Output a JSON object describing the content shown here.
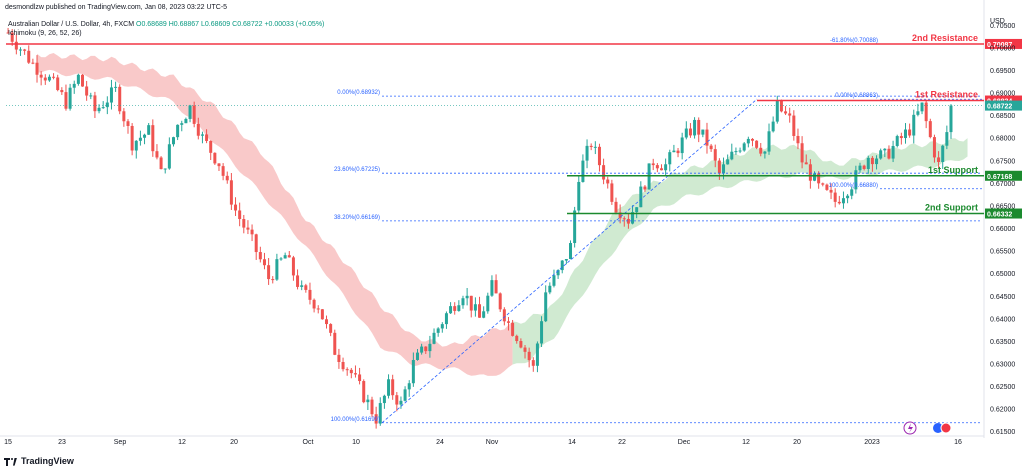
{
  "header": {
    "publisher": "desmondlzw published on TradingView.com, Jan 08, 2023 03:22 UTC-5",
    "symbol": "Australian Dollar / U.S. Dollar, 4h, FXCM",
    "ohlc": "O0.68689  H0.68867  L0.68609  C0.68722  +0.00033 (+0.05%)",
    "indicator": "Ichimoku (9, 26, 52, 26)"
  },
  "footer": {
    "brand": "TradingView"
  },
  "colors": {
    "up": "#26a69a",
    "down": "#ef5350",
    "cloud_bull": "#c8e6c9",
    "cloud_bear": "#f8c0bf",
    "resistance": "#f23645",
    "support": "#1b8a2e",
    "fib": "#2962ff"
  },
  "chart_data": {
    "type": "candlestick",
    "currency": "USD",
    "ylim": [
      0.6145,
      0.7075
    ],
    "y_ticks": [
      "0.70500",
      "0.70000",
      "0.69500",
      "0.69000",
      "0.68500",
      "0.68000",
      "0.67500",
      "0.67000",
      "0.66500",
      "0.66000",
      "0.65500",
      "0.65000",
      "0.64500",
      "0.64000",
      "0.63500",
      "0.63000",
      "0.62500",
      "0.62000",
      "0.61500"
    ],
    "x_ticks": [
      "15",
      "23",
      "Sep",
      "12",
      "20",
      "Oct",
      "10",
      "24",
      "Nov",
      "14",
      "22",
      "Dec",
      "12",
      "20",
      "2023",
      "16"
    ],
    "close_path": [
      [
        0,
        0.7034
      ],
      [
        6,
        0.6965
      ],
      [
        10,
        0.693
      ],
      [
        14,
        0.688
      ],
      [
        17,
        0.6935
      ],
      [
        21,
        0.686
      ],
      [
        26,
        0.6905
      ],
      [
        30,
        0.679
      ],
      [
        34,
        0.6815
      ],
      [
        37,
        0.672
      ],
      [
        41,
        0.683
      ],
      [
        44,
        0.6868
      ],
      [
        47,
        0.68
      ],
      [
        51,
        0.6745
      ],
      [
        55,
        0.664
      ],
      [
        59,
        0.657
      ],
      [
        63,
        0.649
      ],
      [
        67,
        0.654
      ],
      [
        71,
        0.646
      ],
      [
        75,
        0.643
      ],
      [
        79,
        0.633
      ],
      [
        83,
        0.628
      ],
      [
        86,
        0.623
      ],
      [
        89,
        0.618
      ],
      [
        92,
        0.625
      ],
      [
        95,
        0.621
      ],
      [
        98,
        0.63
      ],
      [
        102,
        0.635
      ],
      [
        106,
        0.641
      ],
      [
        110,
        0.646
      ],
      [
        114,
        0.64
      ],
      [
        117,
        0.647
      ],
      [
        121,
        0.639
      ],
      [
        124,
        0.635
      ],
      [
        127,
        0.629
      ],
      [
        130,
        0.646
      ],
      [
        133,
        0.65
      ],
      [
        136,
        0.656
      ],
      [
        138,
        0.672
      ],
      [
        141,
        0.679
      ],
      [
        144,
        0.672
      ],
      [
        147,
        0.665
      ],
      [
        150,
        0.662
      ],
      [
        153,
        0.668
      ],
      [
        156,
        0.675
      ],
      [
        159,
        0.674
      ],
      [
        162,
        0.678
      ],
      [
        166,
        0.683
      ],
      [
        169,
        0.679
      ],
      [
        172,
        0.672
      ],
      [
        175,
        0.676
      ],
      [
        179,
        0.681
      ],
      [
        183,
        0.677
      ],
      [
        186,
        0.687
      ],
      [
        189,
        0.684
      ],
      [
        192,
        0.675
      ],
      [
        196,
        0.669
      ],
      [
        200,
        0.666
      ],
      [
        204,
        0.67
      ],
      [
        208,
        0.676
      ],
      [
        212,
        0.676
      ],
      [
        215,
        0.679
      ],
      [
        218,
        0.682
      ],
      [
        221,
        0.687
      ],
      [
        223,
        0.68
      ],
      [
        225,
        0.674
      ],
      [
        228,
        0.685
      ]
    ],
    "ichimoku_cloud_upper": [
      [
        7,
        0.6985
      ],
      [
        25,
        0.6975
      ],
      [
        40,
        0.6935
      ],
      [
        50,
        0.687
      ],
      [
        62,
        0.676
      ],
      [
        72,
        0.662
      ],
      [
        82,
        0.652
      ],
      [
        90,
        0.643
      ],
      [
        98,
        0.636
      ],
      [
        107,
        0.634
      ],
      [
        116,
        0.637
      ],
      [
        126,
        0.64
      ],
      [
        132,
        0.643
      ],
      [
        140,
        0.655
      ],
      [
        148,
        0.665
      ],
      [
        156,
        0.67
      ],
      [
        164,
        0.673
      ],
      [
        172,
        0.675
      ],
      [
        182,
        0.678
      ],
      [
        192,
        0.678
      ],
      [
        200,
        0.674
      ],
      [
        208,
        0.676
      ],
      [
        216,
        0.678
      ],
      [
        225,
        0.679
      ],
      [
        232,
        0.68
      ]
    ],
    "ichimoku_cloud_lower": [
      [
        7,
        0.695
      ],
      [
        25,
        0.693
      ],
      [
        40,
        0.688
      ],
      [
        50,
        0.679
      ],
      [
        62,
        0.667
      ],
      [
        72,
        0.656
      ],
      [
        82,
        0.644
      ],
      [
        90,
        0.634
      ],
      [
        98,
        0.63
      ],
      [
        107,
        0.629
      ],
      [
        116,
        0.627
      ],
      [
        126,
        0.631
      ],
      [
        132,
        0.636
      ],
      [
        140,
        0.647
      ],
      [
        148,
        0.657
      ],
      [
        156,
        0.664
      ],
      [
        164,
        0.667
      ],
      [
        172,
        0.669
      ],
      [
        182,
        0.671
      ],
      [
        192,
        0.672
      ],
      [
        200,
        0.671
      ],
      [
        208,
        0.672
      ],
      [
        216,
        0.673
      ],
      [
        225,
        0.674
      ],
      [
        232,
        0.676
      ]
    ],
    "ichimoku_cloud_split_x": 122,
    "levels": [
      {
        "name": "2nd Resistance",
        "value": 0.70087,
        "label": "2nd Resistance",
        "price": "0.70087",
        "kind": "resistance"
      },
      {
        "name": "1st Resistance",
        "value": 0.68834,
        "label": "1st Resistance",
        "price": "0.68834",
        "kind": "resistance"
      },
      {
        "name": "1st Support",
        "value": 0.67168,
        "label": "1st Support",
        "price": "0.67168",
        "kind": "support"
      },
      {
        "name": "2nd Support",
        "value": 0.66332,
        "label": "2nd Support",
        "price": "0.66332",
        "kind": "support"
      }
    ],
    "current_price": {
      "value": 0.68722,
      "label": "0.68722"
    },
    "fib_left": [
      {
        "label": "0.00%(0.68932)",
        "value": 0.68932
      },
      {
        "label": "23.60%(0.67225)",
        "value": 0.67225
      },
      {
        "label": "38.20%(0.66169)",
        "value": 0.66169
      },
      {
        "label": "100.00%(0.61699)",
        "value": 0.61699
      }
    ],
    "fib_right": [
      {
        "label": "-61.80%(0.70088)",
        "value": 0.70088
      },
      {
        "label": "0.00%(0.68863)",
        "value": 0.68863
      },
      {
        "label": "100.00%(0.66880)",
        "value": 0.6688
      }
    ]
  }
}
